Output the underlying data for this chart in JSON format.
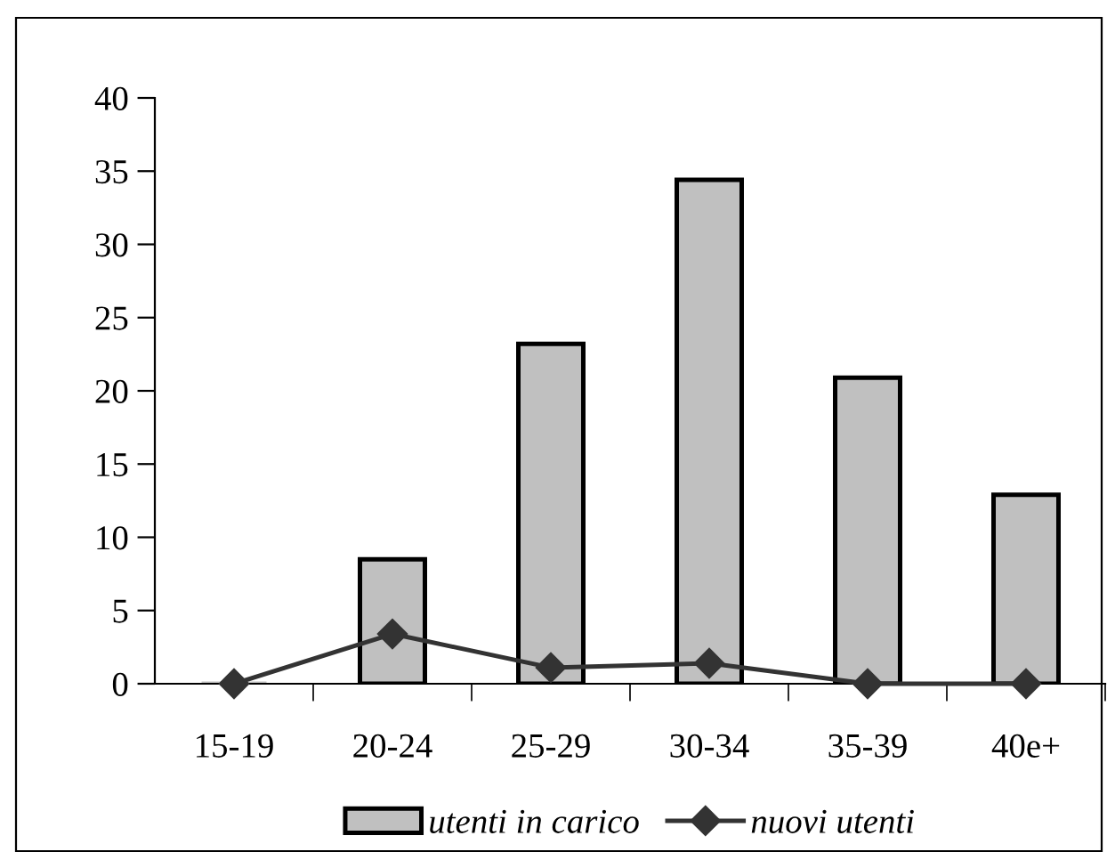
{
  "chart_data": {
    "type": "bar",
    "categories": [
      "15-19",
      "20-24",
      "25-29",
      "30-34",
      "35-39",
      "40e+"
    ],
    "series": [
      {
        "name": "utenti in carico",
        "color": "#c0c0c0",
        "values": [
          0,
          8.5,
          23.2,
          34.4,
          20.9,
          12.9
        ]
      },
      {
        "name": "nuovi utenti",
        "type": "line",
        "color": "#333333",
        "marker": "diamond",
        "line_style": "solid",
        "values": [
          0,
          3.4,
          1.1,
          1.4,
          0,
          0
        ]
      }
    ],
    "ylim": [
      0,
      40
    ],
    "yticks": [
      0,
      5,
      10,
      15,
      20,
      25,
      30,
      35,
      40
    ],
    "grid": false,
    "legend": "bottom"
  }
}
